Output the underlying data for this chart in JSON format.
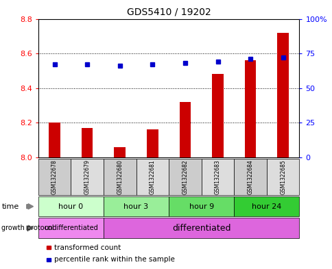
{
  "title": "GDS5410 / 19202",
  "samples": [
    "GSM1322678",
    "GSM1322679",
    "GSM1322680",
    "GSM1322681",
    "GSM1322682",
    "GSM1322683",
    "GSM1322684",
    "GSM1322685"
  ],
  "transformed_counts": [
    8.2,
    8.17,
    8.06,
    8.16,
    8.32,
    8.48,
    8.56,
    8.72
  ],
  "percentile_ranks": [
    67,
    67,
    66,
    67,
    68,
    69,
    71,
    72
  ],
  "ylim_left": [
    8.0,
    8.8
  ],
  "ylim_right": [
    0,
    100
  ],
  "yticks_left": [
    8.0,
    8.2,
    8.4,
    8.6,
    8.8
  ],
  "yticks_right": [
    0,
    25,
    50,
    75,
    100
  ],
  "bar_color": "#cc0000",
  "dot_color": "#0000cc",
  "time_groups": [
    {
      "label": "hour 0",
      "start": 0,
      "end": 2,
      "color": "#ccffcc"
    },
    {
      "label": "hour 3",
      "start": 2,
      "end": 4,
      "color": "#99ee99"
    },
    {
      "label": "hour 9",
      "start": 4,
      "end": 6,
      "color": "#66dd66"
    },
    {
      "label": "hour 24",
      "start": 6,
      "end": 8,
      "color": "#33cc33"
    }
  ],
  "protocol_groups": [
    {
      "label": "undifferentiated",
      "start": 0,
      "end": 2,
      "color": "#ee88ee"
    },
    {
      "label": "differentiated",
      "start": 2,
      "end": 8,
      "color": "#dd66dd"
    }
  ],
  "sample_bg_colors": [
    "#cccccc",
    "#dddddd"
  ],
  "legend_items": [
    {
      "label": "transformed count",
      "color": "#cc0000"
    },
    {
      "label": "percentile rank within the sample",
      "color": "#0000cc"
    }
  ]
}
